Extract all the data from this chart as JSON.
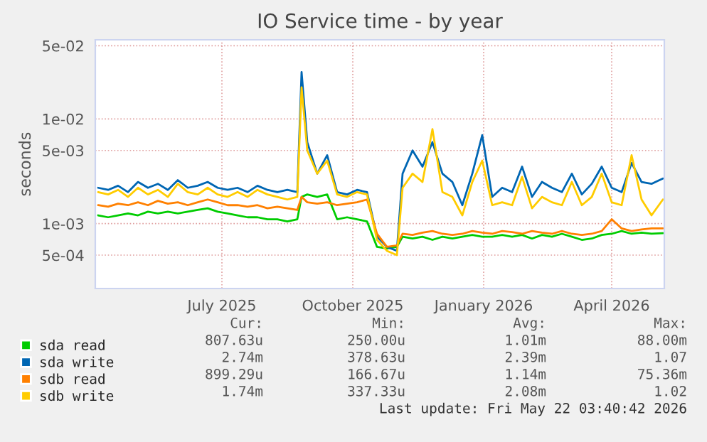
{
  "chart_data": {
    "type": "line",
    "title": "IO Service time - by year",
    "ylabel": "seconds",
    "log": "y",
    "grid": true,
    "legend": "bottom",
    "x": [
      "2025-04-20",
      "2025-04-27",
      "2025-05-04",
      "2025-05-11",
      "2025-05-18",
      "2025-05-25",
      "2025-06-01",
      "2025-06-08",
      "2025-06-15",
      "2025-06-22",
      "2025-06-29",
      "2025-07-06",
      "2025-07-13",
      "2025-07-20",
      "2025-07-27",
      "2025-08-03",
      "2025-08-10",
      "2025-08-17",
      "2025-08-24",
      "2025-08-31",
      "2025-09-07",
      "2025-09-10",
      "2025-09-14",
      "2025-09-21",
      "2025-09-28",
      "2025-10-05",
      "2025-10-12",
      "2025-10-19",
      "2025-10-26",
      "2025-11-02",
      "2025-11-09",
      "2025-11-16",
      "2025-11-20",
      "2025-11-27",
      "2025-12-04",
      "2025-12-11",
      "2025-12-18",
      "2025-12-25",
      "2026-01-01",
      "2026-01-08",
      "2026-01-15",
      "2026-01-22",
      "2026-01-29",
      "2026-02-05",
      "2026-02-12",
      "2026-02-19",
      "2026-02-26",
      "2026-03-05",
      "2026-03-12",
      "2026-03-19",
      "2026-03-26",
      "2026-04-02",
      "2026-04-09",
      "2026-04-16",
      "2026-04-23",
      "2026-04-30",
      "2026-05-07",
      "2026-05-14",
      "2026-05-22"
    ],
    "xlim": [
      "2025-04-18",
      "2026-05-23"
    ],
    "xticks": [
      {
        "value": "2025-07-16",
        "label": "July 2025"
      },
      {
        "value": "2025-10-16",
        "label": "October 2025"
      },
      {
        "value": "2026-01-16",
        "label": "January 2026"
      },
      {
        "value": "2026-04-16",
        "label": "April 2026"
      }
    ],
    "ylim": [
      0.00024,
      0.057
    ],
    "yticks": [
      {
        "value": 0.0005,
        "label": "5e-04"
      },
      {
        "value": 0.001,
        "label": "1e-03"
      },
      {
        "value": 0.005,
        "label": "5e-03"
      },
      {
        "value": 0.01,
        "label": "1e-02"
      },
      {
        "value": 0.05,
        "label": "5e-02"
      }
    ],
    "series": [
      {
        "name": "sda read",
        "color": "#00cc00",
        "values": [
          0.0012,
          0.00115,
          0.0012,
          0.00125,
          0.0012,
          0.0013,
          0.00125,
          0.0013,
          0.00125,
          0.0013,
          0.00135,
          0.0014,
          0.0013,
          0.00125,
          0.0012,
          0.00115,
          0.00115,
          0.0011,
          0.0011,
          0.00105,
          0.0011,
          0.0018,
          0.0019,
          0.0018,
          0.0019,
          0.0011,
          0.00115,
          0.0011,
          0.00105,
          0.0006,
          0.00058,
          0.0006,
          0.00075,
          0.00072,
          0.00075,
          0.0007,
          0.00075,
          0.00072,
          0.00075,
          0.00078,
          0.00075,
          0.00075,
          0.00078,
          0.00075,
          0.00078,
          0.00072,
          0.00078,
          0.00075,
          0.0008,
          0.00075,
          0.0007,
          0.00072,
          0.00078,
          0.0008,
          0.00085,
          0.0008,
          0.00082,
          0.0008,
          0.00081
        ]
      },
      {
        "name": "sda write",
        "color": "#0066b3",
        "values": [
          0.0022,
          0.0021,
          0.0023,
          0.002,
          0.0025,
          0.0022,
          0.0024,
          0.0021,
          0.0026,
          0.0022,
          0.0023,
          0.0025,
          0.0022,
          0.0021,
          0.0022,
          0.002,
          0.0023,
          0.0021,
          0.002,
          0.0021,
          0.002,
          0.028,
          0.006,
          0.003,
          0.0045,
          0.002,
          0.0019,
          0.0021,
          0.002,
          0.00075,
          0.0006,
          0.00055,
          0.003,
          0.005,
          0.0035,
          0.006,
          0.003,
          0.0025,
          0.0015,
          0.003,
          0.007,
          0.0018,
          0.0022,
          0.002,
          0.0035,
          0.0018,
          0.0025,
          0.0022,
          0.002,
          0.003,
          0.0019,
          0.0024,
          0.0035,
          0.0022,
          0.002,
          0.0038,
          0.0025,
          0.0024,
          0.0027
        ]
      },
      {
        "name": "sdb read",
        "color": "#ff8000",
        "values": [
          0.0015,
          0.00145,
          0.00155,
          0.0015,
          0.0016,
          0.0015,
          0.00165,
          0.00155,
          0.0016,
          0.0015,
          0.0016,
          0.0017,
          0.0016,
          0.0015,
          0.0015,
          0.00145,
          0.0015,
          0.0014,
          0.00145,
          0.0014,
          0.00135,
          0.0018,
          0.0016,
          0.00155,
          0.0016,
          0.0015,
          0.00155,
          0.0016,
          0.0017,
          0.0008,
          0.0006,
          0.00062,
          0.0008,
          0.00078,
          0.00082,
          0.00085,
          0.0008,
          0.00078,
          0.0008,
          0.00085,
          0.00082,
          0.0008,
          0.00085,
          0.00083,
          0.0008,
          0.00085,
          0.00082,
          0.0008,
          0.00085,
          0.0008,
          0.00078,
          0.0008,
          0.00085,
          0.0011,
          0.0009,
          0.00085,
          0.00088,
          0.0009,
          0.0009
        ]
      },
      {
        "name": "sdb write",
        "color": "#ffcc00",
        "values": [
          0.002,
          0.0019,
          0.0021,
          0.0018,
          0.0022,
          0.0019,
          0.0021,
          0.0018,
          0.0024,
          0.002,
          0.0019,
          0.0022,
          0.0019,
          0.0018,
          0.002,
          0.0018,
          0.0021,
          0.0019,
          0.0018,
          0.0017,
          0.0018,
          0.02,
          0.005,
          0.003,
          0.004,
          0.0019,
          0.0018,
          0.002,
          0.0019,
          0.0007,
          0.00055,
          0.0005,
          0.0022,
          0.003,
          0.0025,
          0.008,
          0.002,
          0.0018,
          0.0012,
          0.0025,
          0.004,
          0.0015,
          0.0016,
          0.0015,
          0.0028,
          0.0014,
          0.0018,
          0.0016,
          0.0015,
          0.0025,
          0.0015,
          0.0018,
          0.003,
          0.0016,
          0.0015,
          0.0045,
          0.0017,
          0.0012,
          0.0017
        ]
      }
    ],
    "annotations": [
      "Cur:",
      "Min:",
      "Avg:",
      "Max:",
      "807.63u",
      "250.00u",
      "1.01m",
      "88.00m",
      "2.74m",
      "378.63u",
      "2.39m",
      "1.07",
      "899.29u",
      "166.67u",
      "1.14m",
      "75.36m",
      "1.74m",
      "337.33u",
      "2.08m",
      "1.02",
      "Last update: Fri May 22 03:40:42 2026"
    ]
  }
}
